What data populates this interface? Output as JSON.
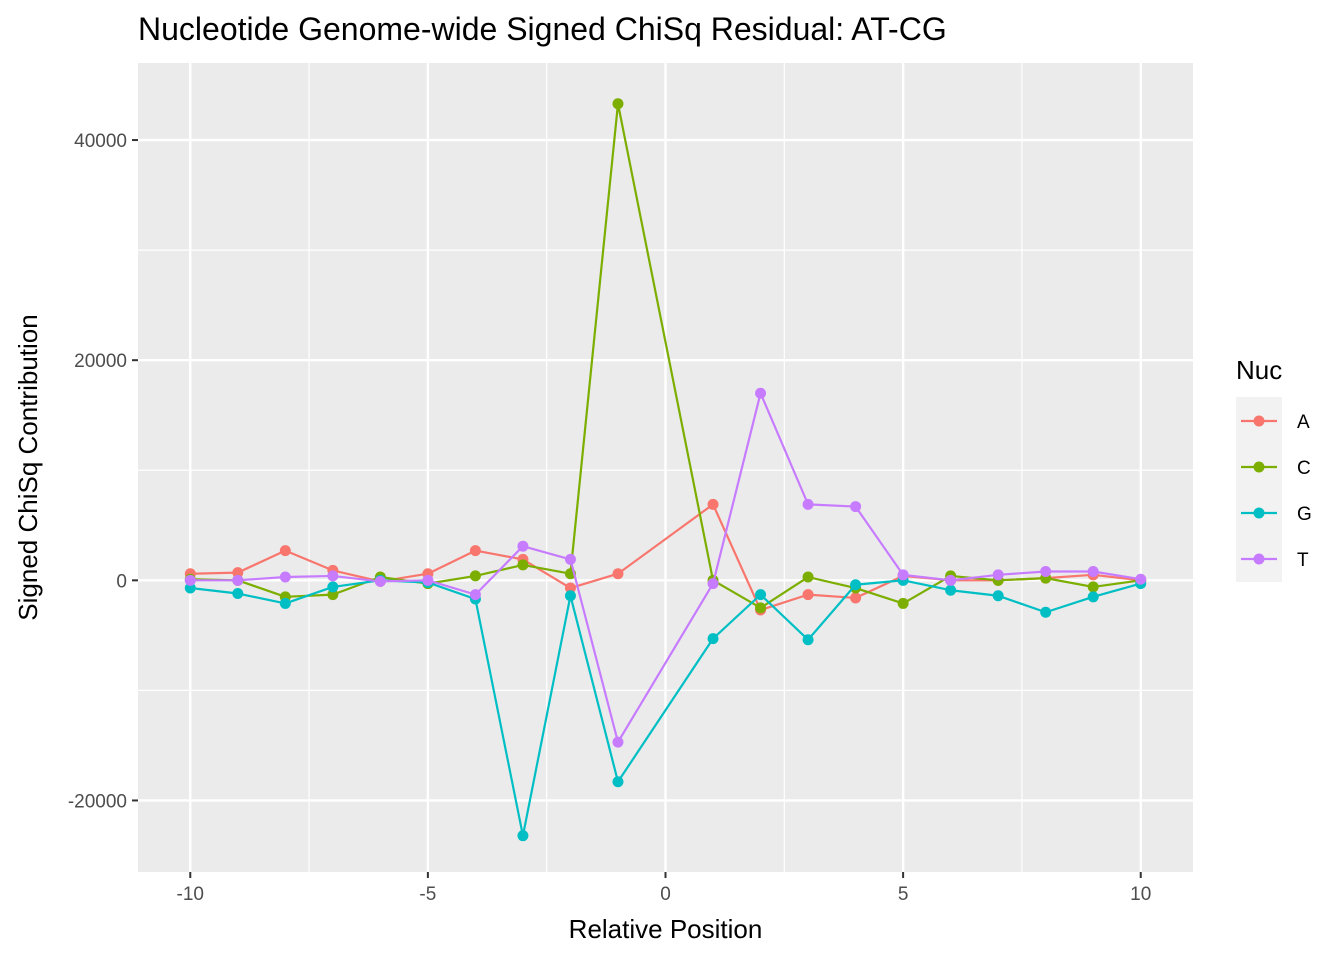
{
  "chart_data": {
    "type": "line",
    "title": "Nucleotide Genome-wide Signed ChiSq Residual: AT-CG",
    "xlabel": "Relative Position",
    "ylabel": "Signed ChiSq Contribution",
    "xlim": [
      -11.1,
      11.1
    ],
    "ylim": [
      -26500,
      47000
    ],
    "x_ticks": [
      -10,
      -5,
      0,
      5,
      10
    ],
    "x_tick_labels": [
      "-10",
      "-5",
      "0",
      "5",
      "10"
    ],
    "y_ticks": [
      -20000,
      0,
      20000,
      40000
    ],
    "y_tick_labels": [
      "-20000",
      "0",
      "20000",
      "40000"
    ],
    "x": [
      -10,
      -9,
      -8,
      -7,
      -6,
      -5,
      -4,
      -3,
      -2,
      -1,
      1,
      2,
      3,
      4,
      5,
      6,
      7,
      8,
      9,
      10
    ],
    "grid": true,
    "legend": {
      "title": "Nuc",
      "placement": "right"
    },
    "series": [
      {
        "name": "A",
        "color": "#F8766D",
        "values": [
          600,
          700,
          2700,
          900,
          -100,
          600,
          2700,
          1900,
          -700,
          600,
          6900,
          -2700,
          -1300,
          -1600,
          400,
          0,
          0,
          200,
          500,
          0
        ]
      },
      {
        "name": "C",
        "color": "#7CAE00",
        "values": [
          100,
          0,
          -1500,
          -1300,
          300,
          -300,
          400,
          1400,
          600,
          43300,
          0,
          -2500,
          300,
          -700,
          -2100,
          400,
          0,
          200,
          -600,
          0
        ]
      },
      {
        "name": "G",
        "color": "#00BFC4",
        "values": [
          -700,
          -1200,
          -2100,
          -600,
          0,
          -200,
          -1700,
          -23200,
          -1400,
          -18300,
          -5300,
          -1300,
          -5400,
          -400,
          0,
          -900,
          -1400,
          -2900,
          -1500,
          -300
        ]
      },
      {
        "name": "T",
        "color": "#C77CFF",
        "values": [
          0,
          0,
          300,
          400,
          -100,
          0,
          -1300,
          3100,
          1900,
          -14700,
          -300,
          17000,
          6900,
          6700,
          500,
          0,
          500,
          800,
          800,
          100
        ]
      }
    ]
  }
}
